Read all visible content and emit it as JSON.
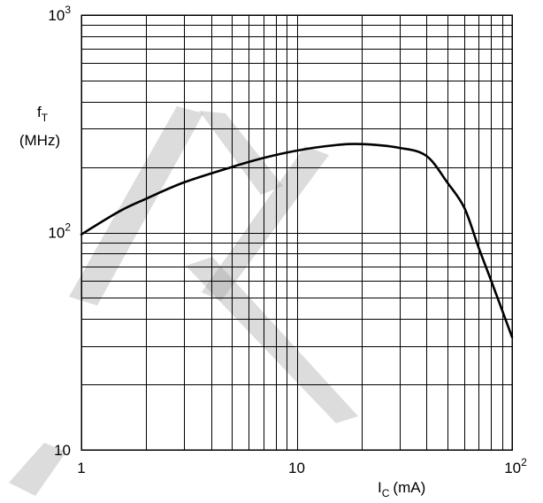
{
  "chart_data": {
    "type": "line",
    "x_scale": "log",
    "y_scale": "log",
    "xlim": [
      1,
      100
    ],
    "ylim": [
      10,
      1000
    ],
    "grid": true,
    "x_ticks": [
      {
        "base": "1",
        "exp": ""
      },
      {
        "base": "10",
        "exp": ""
      },
      {
        "base": "10",
        "exp": "2"
      }
    ],
    "y_ticks": [
      {
        "base": "10",
        "exp": ""
      },
      {
        "base": "10",
        "exp": "2"
      },
      {
        "base": "10",
        "exp": "3"
      }
    ],
    "ylabel": {
      "main": "f",
      "sub": "T",
      "unit": "(MHz)"
    },
    "xlabel": {
      "main": "I",
      "sub": "C",
      "unit": "(mA)"
    },
    "series": [
      {
        "x": [
          1,
          1.5,
          2,
          3,
          5,
          7,
          10,
          15,
          20,
          30,
          40,
          50,
          60,
          70,
          80,
          100
        ],
        "y": [
          98,
          125,
          143,
          170,
          200,
          220,
          238,
          252,
          255,
          245,
          225,
          170,
          130,
          85,
          60,
          33
        ]
      }
    ],
    "colors": {
      "curve": "#000000",
      "grid": "#000000",
      "watermark": "#9a9a9a"
    }
  }
}
